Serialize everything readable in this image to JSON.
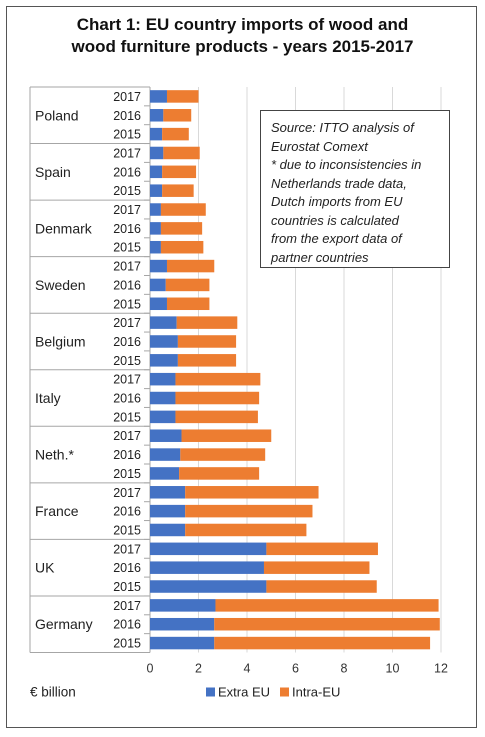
{
  "chart_data": {
    "type": "bar",
    "orientation": "horizontal",
    "stacked": true,
    "title_line1": "Chart 1: EU country imports of wood and",
    "title_line2": "wood furniture products - years 2015-2017",
    "xlabel": "€ billion",
    "xlim": [
      0,
      12
    ],
    "x_ticks": [
      "0",
      "2",
      "4",
      "6",
      "8",
      "10",
      "12"
    ],
    "gridlines": true,
    "legend_position": "bottom",
    "note_lines": [
      "Source: ITTO analysis of",
      "Eurostat Comext",
      "* due to inconsistencies in",
      "Netherlands trade data,",
      "Dutch imports from EU",
      "countries is calculated",
      "from the export data of",
      "partner countries"
    ],
    "series": [
      {
        "name": "Extra EU",
        "color": "#4472c4"
      },
      {
        "name": "Intra-EU",
        "color": "#ed7d31"
      }
    ],
    "groups": [
      {
        "country": "Poland",
        "bars": [
          {
            "year": "2017",
            "values": [
              0.7,
              1.3
            ]
          },
          {
            "year": "2016",
            "values": [
              0.55,
              1.15
            ]
          },
          {
            "year": "2015",
            "values": [
              0.5,
              1.1
            ]
          }
        ]
      },
      {
        "country": "Spain",
        "bars": [
          {
            "year": "2017",
            "values": [
              0.55,
              1.5
            ]
          },
          {
            "year": "2016",
            "values": [
              0.5,
              1.4
            ]
          },
          {
            "year": "2015",
            "values": [
              0.5,
              1.3
            ]
          }
        ]
      },
      {
        "country": "Denmark",
        "bars": [
          {
            "year": "2017",
            "values": [
              0.45,
              1.85
            ]
          },
          {
            "year": "2016",
            "values": [
              0.45,
              1.7
            ]
          },
          {
            "year": "2015",
            "values": [
              0.45,
              1.75
            ]
          }
        ]
      },
      {
        "country": "Sweden",
        "bars": [
          {
            "year": "2017",
            "values": [
              0.7,
              1.95
            ]
          },
          {
            "year": "2016",
            "values": [
              0.65,
              1.8
            ]
          },
          {
            "year": "2015",
            "values": [
              0.7,
              1.75
            ]
          }
        ]
      },
      {
        "country": "Belgium",
        "bars": [
          {
            "year": "2017",
            "values": [
              1.1,
              2.5
            ]
          },
          {
            "year": "2016",
            "values": [
              1.15,
              2.4
            ]
          },
          {
            "year": "2015",
            "values": [
              1.15,
              2.4
            ]
          }
        ]
      },
      {
        "country": "Italy",
        "bars": [
          {
            "year": "2017",
            "values": [
              1.05,
              3.5
            ]
          },
          {
            "year": "2016",
            "values": [
              1.05,
              3.45
            ]
          },
          {
            "year": "2015",
            "values": [
              1.05,
              3.4
            ]
          }
        ]
      },
      {
        "country": "Neth.*",
        "bars": [
          {
            "year": "2017",
            "values": [
              1.3,
              3.7
            ]
          },
          {
            "year": "2016",
            "values": [
              1.25,
              3.5
            ]
          },
          {
            "year": "2015",
            "values": [
              1.2,
              3.3
            ]
          }
        ]
      },
      {
        "country": "France",
        "bars": [
          {
            "year": "2017",
            "values": [
              1.45,
              5.5
            ]
          },
          {
            "year": "2016",
            "values": [
              1.45,
              5.25
            ]
          },
          {
            "year": "2015",
            "values": [
              1.45,
              5.0
            ]
          }
        ]
      },
      {
        "country": "UK",
        "bars": [
          {
            "year": "2017",
            "values": [
              4.8,
              4.6
            ]
          },
          {
            "year": "2016",
            "values": [
              4.7,
              4.35
            ]
          },
          {
            "year": "2015",
            "values": [
              4.8,
              4.55
            ]
          }
        ]
      },
      {
        "country": "Germany",
        "bars": [
          {
            "year": "2017",
            "values": [
              2.7,
              9.2
            ]
          },
          {
            "year": "2016",
            "values": [
              2.65,
              9.3
            ]
          },
          {
            "year": "2015",
            "values": [
              2.65,
              8.9
            ]
          }
        ]
      }
    ]
  }
}
